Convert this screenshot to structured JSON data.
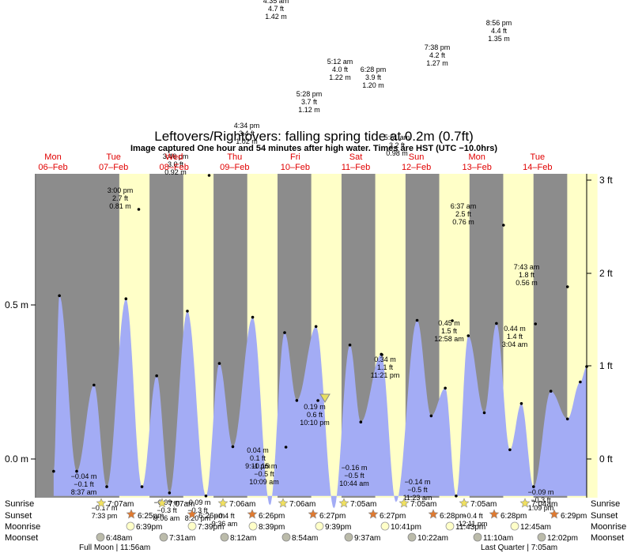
{
  "header": {
    "title": "Leftovers/Rightovers: falling  spring tide at 0.2m (0.7ft)",
    "subtitle": "Image captured One hour and 54 minutes after high water. Times are HST (UTC −10.0hrs)"
  },
  "days": [
    {
      "dow": "Mon",
      "date": "06–Feb"
    },
    {
      "dow": "Tue",
      "date": "07–Feb"
    },
    {
      "dow": "Wed",
      "date": "08–Feb"
    },
    {
      "dow": "Thu",
      "date": "09–Feb"
    },
    {
      "dow": "Fri",
      "date": "10–Feb"
    },
    {
      "dow": "Sat",
      "date": "11–Feb"
    },
    {
      "dow": "Sun",
      "date": "12–Feb"
    },
    {
      "dow": "Mon",
      "date": "13–Feb"
    },
    {
      "dow": "Tue",
      "date": "14–Feb"
    }
  ],
  "axes": {
    "left_ticks": [
      "0.0 m",
      "0.5 m"
    ],
    "right_ticks": [
      "0 ft",
      "1 ft",
      "2 ft",
      "3 ft"
    ]
  },
  "rows": {
    "sunrise": "Sunrise",
    "sunset": "Sunset",
    "moonrise": "Moonrise",
    "moonset": "Moonset"
  },
  "events": {
    "sunrise": [
      "7:07am",
      "7:07am",
      "7:06am",
      "7:06am",
      "7:05am",
      "7:05am",
      "7:05am",
      "7:04am"
    ],
    "sunset": [
      "6:25pm",
      "6:26pm",
      "6:26pm",
      "6:27pm",
      "6:27pm",
      "6:28pm",
      "6:28pm",
      "6:29pm"
    ],
    "moonrise": [
      "6:39pm",
      "7:39pm",
      "8:39pm",
      "9:39pm",
      "10:41pm",
      "11:43pm",
      "12:45am"
    ],
    "moonset": [
      "6:48am",
      "7:31am",
      "8:12am",
      "8:54am",
      "9:37am",
      "10:22am",
      "11:10am",
      "12:02pm"
    ],
    "moon_phases": [
      "Full Moon | 11:56am",
      "Last Quarter | 7:05am"
    ]
  },
  "tide_labels": [
    {
      "text": [
        "4:35 am",
        "4.7 ft",
        "1.42 m"
      ]
    },
    {
      "text": [
        "8:56 pm",
        "4.4 ft",
        "1.35 m"
      ]
    },
    {
      "text": [
        "7:38 pm",
        "4.2 ft",
        "1.27 m"
      ]
    },
    {
      "text": [
        "5:12 am",
        "4.0 ft",
        "1.22 m"
      ]
    },
    {
      "text": [
        "6:28 pm",
        "3.9 ft",
        "1.20 m"
      ]
    },
    {
      "text": [
        "5:28 pm",
        "3.7 ft",
        "1.12 m"
      ]
    },
    {
      "text": [
        "4:34 pm",
        "3.4 ft",
        "1.02 m"
      ]
    },
    {
      "text": [
        "5:51 am",
        "3.2 ft",
        "0.98 m"
      ]
    },
    {
      "text": [
        "3:46 pm",
        "3.0 ft",
        "0.92 m"
      ]
    },
    {
      "text": [
        "3:00 pm",
        "2.7 ft",
        "0.81 m"
      ]
    },
    {
      "text": [
        "6:37 am",
        "2.5 ft",
        "0.76 m"
      ]
    },
    {
      "text": [
        "7:43 am",
        "1.8 ft",
        "0.56 m"
      ]
    },
    {
      "text": [
        "0.45 m",
        "1.5 ft",
        "12:58 am"
      ]
    },
    {
      "text": [
        "0.44 m",
        "1.4 ft",
        "3:04 am"
      ]
    },
    {
      "text": [
        "0.34 m",
        "1.1 ft",
        "11:21 pm"
      ]
    },
    {
      "text": [
        "0.19 m",
        "0.6 ft",
        "10:10 pm"
      ]
    },
    {
      "text": [
        "0.04 m",
        "0.1 ft",
        "9:11 pm"
      ]
    },
    {
      "text": [
        "−0.04 m",
        "−0.1 ft",
        "8:37 am"
      ]
    },
    {
      "text": [
        "−0.09 m",
        "−0.3 ft",
        "9:06 am"
      ]
    },
    {
      "text": [
        "−0.09 m",
        "−0.3 ft",
        "8:20 pm"
      ]
    },
    {
      "text": [
        "−0.4 ft",
        "9:36 am"
      ]
    },
    {
      "text": [
        "−0.15 m",
        "−0.5 ft",
        "10:09 am"
      ]
    },
    {
      "text": [
        "−0.16 m",
        "−0.5 ft",
        "10:44 am"
      ]
    },
    {
      "text": [
        "−0.14 m",
        "−0.5 ft",
        "11:23 am"
      ]
    },
    {
      "text": [
        "−0.4 ft",
        "12:11 pm"
      ]
    },
    {
      "text": [
        "−0.09 m",
        "−0.3 ft",
        "1:09 pm"
      ]
    },
    {
      "text": [
        "−0.17 m",
        "7:33 pm"
      ]
    }
  ],
  "chart_data": {
    "type": "area",
    "title": "Leftovers/Rightovers: falling  spring tide at 0.2m (0.7ft)",
    "units": "m",
    "ylim": [
      -0.12,
      0.93
    ],
    "x_range_days": [
      6.0,
      14.6
    ],
    "series": [
      {
        "x": [
          6.27,
          6.36,
          6.63,
          6.9,
          7.1,
          7.4,
          7.65,
          7.88,
          8.08,
          8.36,
          8.65,
          8.86,
          9.07,
          9.38,
          9.65,
          9.88,
          10.07,
          10.37,
          10.65,
          10.9,
          11.07,
          11.39,
          11.62,
          11.95,
          12.17,
          12.39,
          12.56,
          12.75,
          13.0,
          13.19,
          13.4,
          13.58,
          13.77,
          14.04,
          14.3,
          14.5,
          14.6
        ],
        "y": [
          -0.04,
          0.53,
          -0.04,
          0.24,
          -0.09,
          0.52,
          -0.09,
          0.27,
          -0.11,
          0.48,
          -0.12,
          0.31,
          0.04,
          0.46,
          -0.15,
          0.41,
          0.19,
          0.43,
          -0.16,
          0.37,
          0.12,
          0.34,
          -0.14,
          0.45,
          0.14,
          0.23,
          -0.12,
          0.4,
          0.15,
          0.44,
          0.03,
          0.18,
          -0.09,
          0.22,
          0.13,
          0.25,
          0.3
        ]
      }
    ]
  },
  "marker": {
    "label": "now",
    "x": 10.51,
    "y": 0.2
  }
}
